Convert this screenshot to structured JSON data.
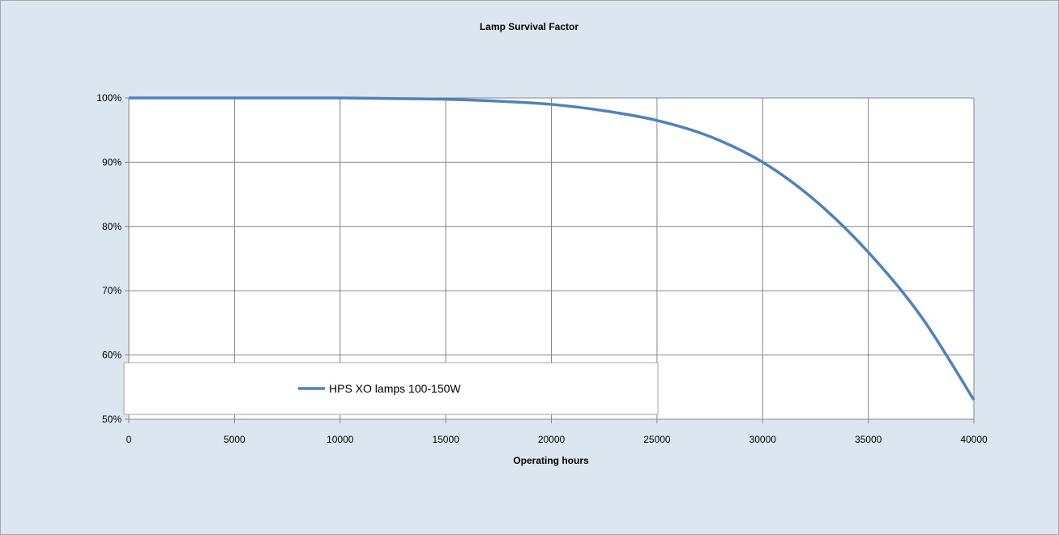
{
  "chart_data": {
    "type": "line",
    "title": "Lamp Survival Factor",
    "xlabel": "Operating hours",
    "ylabel": "",
    "xlim": [
      0,
      40000
    ],
    "ylim": [
      50,
      100
    ],
    "x_ticks": [
      0,
      5000,
      10000,
      15000,
      20000,
      25000,
      30000,
      35000,
      40000
    ],
    "x_tick_labels": [
      "0",
      "5000",
      "10000",
      "15000",
      "20000",
      "25000",
      "30000",
      "35000",
      "40000"
    ],
    "y_ticks": [
      50,
      60,
      70,
      80,
      90,
      100
    ],
    "y_tick_labels": [
      "50%",
      "60%",
      "70%",
      "80%",
      "90%",
      "100%"
    ],
    "grid": true,
    "legend_position": "bottom-left",
    "series": [
      {
        "name": "HPS XO lamps 100-150W",
        "color": "#4f81bd",
        "x": [
          0,
          5000,
          10000,
          12500,
          15000,
          17500,
          20000,
          22500,
          25000,
          27500,
          30000,
          32500,
          35000,
          37500,
          40000
        ],
        "y": [
          100,
          100,
          100,
          99.9,
          99.8,
          99.5,
          99,
          98,
          96.5,
          94,
          90,
          84,
          76,
          66,
          53
        ]
      }
    ]
  }
}
